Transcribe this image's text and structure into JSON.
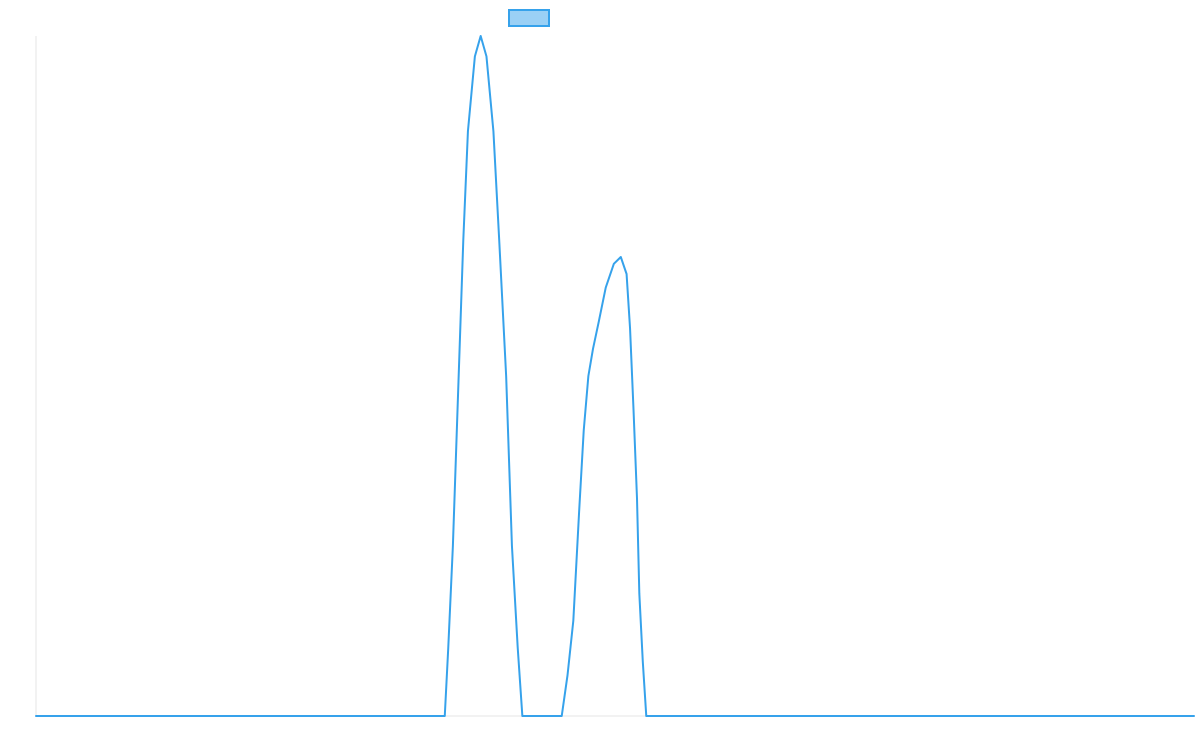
{
  "chart_data": {
    "type": "line",
    "title": "",
    "xlabel": "",
    "ylabel": "",
    "xlim": [
      0,
      100
    ],
    "ylim": [
      0,
      100
    ],
    "grid": false,
    "legend_position": "top",
    "series": [
      {
        "label": "",
        "border_color": "#36a2eb",
        "fill_color": "#9ad0f5",
        "points": [
          {
            "x": 0,
            "y": 0
          },
          {
            "x": 35.3,
            "y": 0
          },
          {
            "x": 35.6,
            "y": 10
          },
          {
            "x": 36.0,
            "y": 25
          },
          {
            "x": 36.5,
            "y": 50
          },
          {
            "x": 36.9,
            "y": 70
          },
          {
            "x": 37.3,
            "y": 86
          },
          {
            "x": 37.9,
            "y": 97
          },
          {
            "x": 38.4,
            "y": 100
          },
          {
            "x": 38.9,
            "y": 97
          },
          {
            "x": 39.5,
            "y": 86
          },
          {
            "x": 40.0,
            "y": 70
          },
          {
            "x": 40.6,
            "y": 50
          },
          {
            "x": 41.1,
            "y": 25
          },
          {
            "x": 41.6,
            "y": 10
          },
          {
            "x": 42.0,
            "y": 0
          },
          {
            "x": 45.4,
            "y": 0
          },
          {
            "x": 45.9,
            "y": 6
          },
          {
            "x": 46.4,
            "y": 14
          },
          {
            "x": 46.9,
            "y": 30
          },
          {
            "x": 47.3,
            "y": 42
          },
          {
            "x": 47.7,
            "y": 50
          },
          {
            "x": 48.1,
            "y": 54
          },
          {
            "x": 48.6,
            "y": 58
          },
          {
            "x": 49.2,
            "y": 63
          },
          {
            "x": 49.9,
            "y": 66.5
          },
          {
            "x": 50.5,
            "y": 67.5
          },
          {
            "x": 51.0,
            "y": 65
          },
          {
            "x": 51.3,
            "y": 57
          },
          {
            "x": 51.6,
            "y": 45
          },
          {
            "x": 51.9,
            "y": 32
          },
          {
            "x": 52.1,
            "y": 18
          },
          {
            "x": 52.4,
            "y": 8
          },
          {
            "x": 52.7,
            "y": 0
          },
          {
            "x": 100,
            "y": 0
          }
        ]
      }
    ]
  }
}
